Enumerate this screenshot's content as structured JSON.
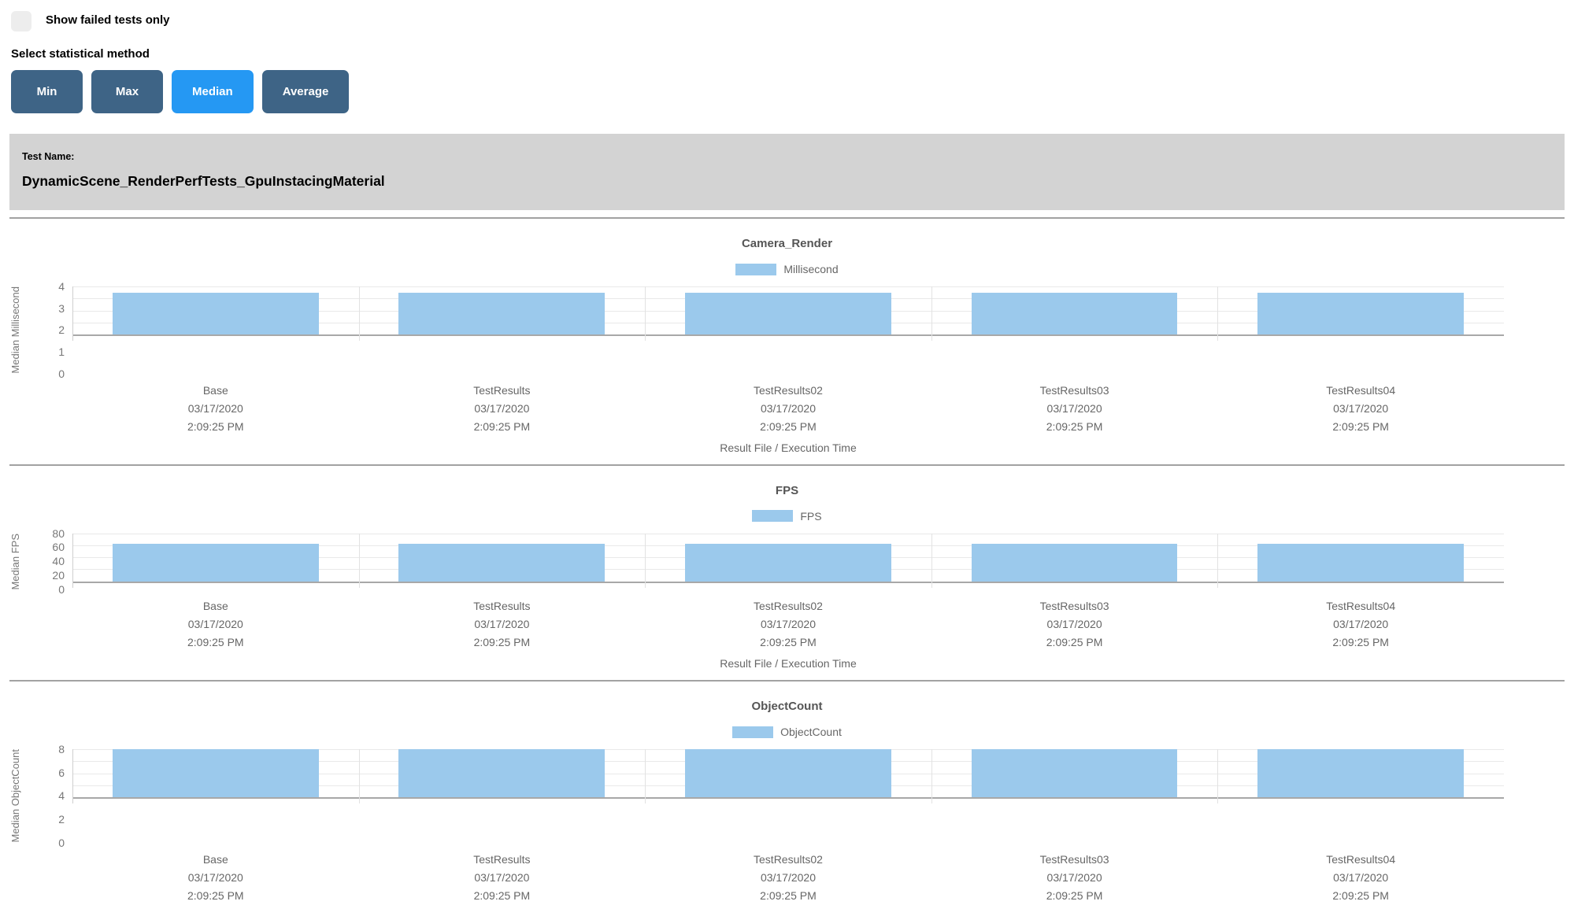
{
  "controls": {
    "show_failed_label": "Show failed tests only",
    "select_method_label": "Select statistical method",
    "buttons": [
      "Min",
      "Max",
      "Median",
      "Average"
    ],
    "active_index": 2
  },
  "banner": {
    "label": "Test Name:",
    "test_name": "DynamicScene_RenderPerfTests_GpuInstacingMaterial"
  },
  "colors": {
    "bar": "#9bc9ec",
    "button": "#3e6486",
    "button_active": "#2598f3",
    "banner_bg": "#d3d3d3"
  },
  "chart_data": [
    {
      "type": "bar",
      "title": "Camera_Render",
      "legend": "Millisecond",
      "ylabel": "Median Millisecond",
      "xlabel": "Result File / Execution Time",
      "yticks": [
        4,
        3,
        2,
        1,
        0
      ],
      "ylim": [
        0,
        4
      ],
      "categories": [
        "Base",
        "TestResults",
        "TestResults02",
        "TestResults03",
        "TestResults04"
      ],
      "category_dates": [
        "03/17/2020",
        "03/17/2020",
        "03/17/2020",
        "03/17/2020",
        "03/17/2020"
      ],
      "category_times": [
        "2:09:25 PM",
        "2:09:25 PM",
        "2:09:25 PM",
        "2:09:25 PM",
        "2:09:25 PM"
      ],
      "values": [
        3.45,
        3.45,
        3.45,
        3.45,
        3.45
      ]
    },
    {
      "type": "bar",
      "title": "FPS",
      "legend": "FPS",
      "ylabel": "Median FPS",
      "xlabel": "Result File / Execution Time",
      "yticks": [
        80,
        60,
        40,
        20,
        0
      ],
      "ylim": [
        0,
        80
      ],
      "categories": [
        "Base",
        "TestResults",
        "TestResults02",
        "TestResults03",
        "TestResults04"
      ],
      "category_dates": [
        "03/17/2020",
        "03/17/2020",
        "03/17/2020",
        "03/17/2020",
        "03/17/2020"
      ],
      "category_times": [
        "2:09:25 PM",
        "2:09:25 PM",
        "2:09:25 PM",
        "2:09:25 PM",
        "2:09:25 PM"
      ],
      "values": [
        62,
        62,
        62,
        62,
        62
      ]
    },
    {
      "type": "bar",
      "title": "ObjectCount",
      "legend": "ObjectCount",
      "ylabel": "Median ObjectCount",
      "xlabel": "",
      "yticks": [
        8,
        6,
        4,
        2,
        0
      ],
      "ylim": [
        0,
        8
      ],
      "categories": [
        "Base",
        "TestResults",
        "TestResults02",
        "TestResults03",
        "TestResults04"
      ],
      "category_dates": [
        "03/17/2020",
        "03/17/2020",
        "03/17/2020",
        "03/17/2020",
        "03/17/2020"
      ],
      "category_times": [
        "2:09:25 PM",
        "2:09:25 PM",
        "2:09:25 PM",
        "2:09:25 PM",
        "2:09:25 PM"
      ],
      "values": [
        8,
        8,
        8,
        8,
        8
      ]
    }
  ]
}
